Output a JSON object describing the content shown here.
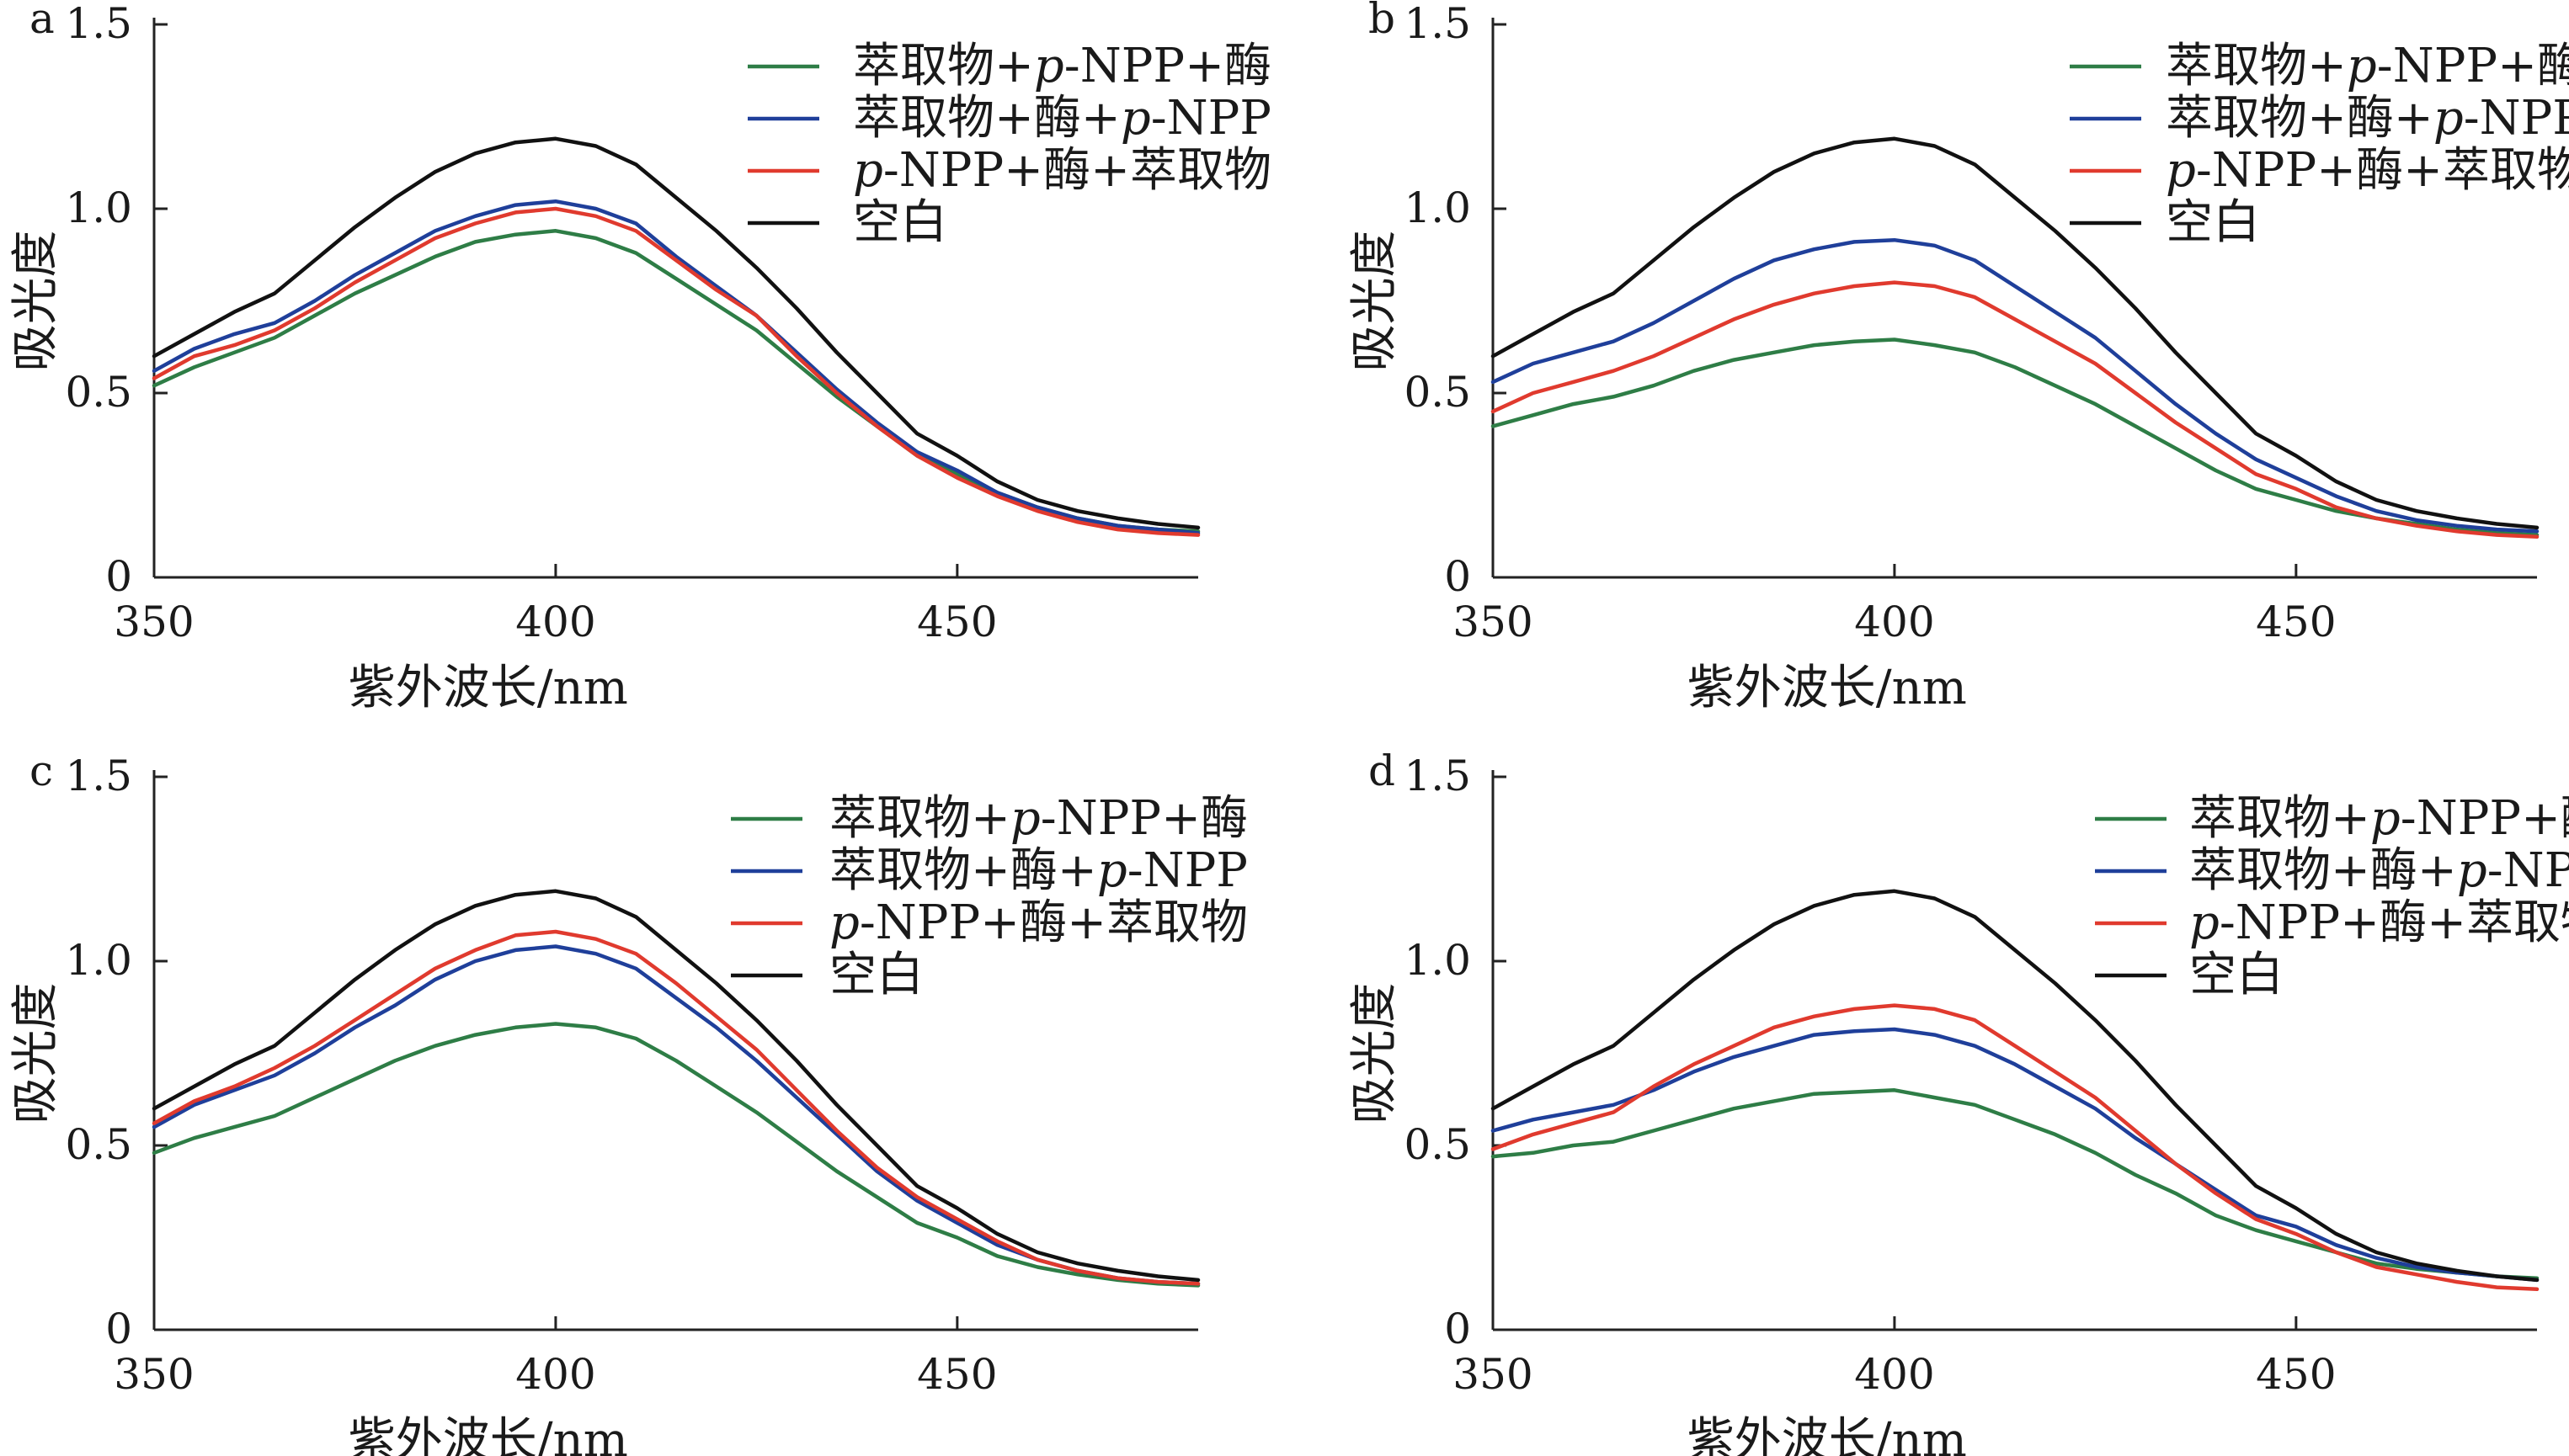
{
  "colors": {
    "green": "#2e7d46",
    "blue": "#1f3f9a",
    "red": "#e03a2e",
    "black": "#111111"
  },
  "chart_data": [
    {
      "type": "line",
      "panel": "a",
      "xlabel": "紫外波长/nm",
      "ylabel": "吸光度",
      "xlim": [
        350,
        480
      ],
      "ylim": [
        0,
        1.5
      ],
      "xticks": [
        "350",
        "400",
        "450"
      ],
      "yticks": [
        "0",
        "0.5",
        "1.0",
        "1.5"
      ],
      "legend_position": "top-right",
      "x": [
        350,
        355,
        360,
        365,
        370,
        375,
        380,
        385,
        390,
        395,
        400,
        405,
        410,
        415,
        420,
        425,
        430,
        435,
        440,
        445,
        450,
        455,
        460,
        465,
        470,
        475,
        480
      ],
      "series": [
        {
          "name": "萃取物+p-NPP+酶",
          "color": "green",
          "values": [
            0.52,
            0.57,
            0.61,
            0.65,
            0.71,
            0.77,
            0.82,
            0.87,
            0.91,
            0.93,
            0.94,
            0.92,
            0.88,
            0.81,
            0.74,
            0.67,
            0.58,
            0.49,
            0.41,
            0.33,
            0.28,
            0.23,
            0.19,
            0.16,
            0.14,
            0.13,
            0.125
          ]
        },
        {
          "name": "萃取物+酶+p-NPP",
          "color": "blue",
          "values": [
            0.56,
            0.62,
            0.66,
            0.69,
            0.75,
            0.82,
            0.88,
            0.94,
            0.98,
            1.01,
            1.02,
            1.0,
            0.96,
            0.87,
            0.79,
            0.71,
            0.61,
            0.51,
            0.42,
            0.34,
            0.29,
            0.23,
            0.19,
            0.16,
            0.14,
            0.13,
            0.12
          ]
        },
        {
          "name": "p-NPP+酶+萃取物",
          "color": "red",
          "values": [
            0.54,
            0.6,
            0.63,
            0.67,
            0.73,
            0.8,
            0.86,
            0.92,
            0.96,
            0.99,
            1.0,
            0.98,
            0.94,
            0.86,
            0.78,
            0.71,
            0.6,
            0.5,
            0.41,
            0.33,
            0.27,
            0.22,
            0.18,
            0.15,
            0.13,
            0.12,
            0.115
          ]
        },
        {
          "name": "空白",
          "color": "black",
          "values": [
            0.6,
            0.66,
            0.72,
            0.77,
            0.86,
            0.95,
            1.03,
            1.1,
            1.15,
            1.18,
            1.19,
            1.17,
            1.12,
            1.03,
            0.94,
            0.84,
            0.73,
            0.61,
            0.5,
            0.39,
            0.33,
            0.26,
            0.21,
            0.18,
            0.16,
            0.145,
            0.135
          ]
        }
      ]
    },
    {
      "type": "line",
      "panel": "b",
      "xlabel": "紫外波长/nm",
      "ylabel": "吸光度",
      "xlim": [
        350,
        480
      ],
      "ylim": [
        0,
        1.5
      ],
      "xticks": [
        "350",
        "400",
        "450"
      ],
      "yticks": [
        "0",
        "0.5",
        "1.0",
        "1.5"
      ],
      "legend_position": "top-right",
      "x": [
        350,
        355,
        360,
        365,
        370,
        375,
        380,
        385,
        390,
        395,
        400,
        405,
        410,
        415,
        420,
        425,
        430,
        435,
        440,
        445,
        450,
        455,
        460,
        465,
        470,
        475,
        480
      ],
      "series": [
        {
          "name": "萃取物+p-NPP+酶",
          "color": "green",
          "values": [
            0.41,
            0.44,
            0.47,
            0.49,
            0.52,
            0.56,
            0.59,
            0.61,
            0.63,
            0.64,
            0.645,
            0.63,
            0.61,
            0.57,
            0.52,
            0.47,
            0.41,
            0.35,
            0.29,
            0.24,
            0.21,
            0.18,
            0.16,
            0.145,
            0.13,
            0.12,
            0.115
          ]
        },
        {
          "name": "萃取物+酶+p-NPP",
          "color": "blue",
          "values": [
            0.53,
            0.58,
            0.61,
            0.64,
            0.69,
            0.75,
            0.81,
            0.86,
            0.89,
            0.91,
            0.915,
            0.9,
            0.86,
            0.79,
            0.72,
            0.65,
            0.56,
            0.47,
            0.39,
            0.32,
            0.27,
            0.22,
            0.18,
            0.155,
            0.14,
            0.13,
            0.125
          ]
        },
        {
          "name": "p-NPP+酶+萃取物",
          "color": "red",
          "values": [
            0.45,
            0.5,
            0.53,
            0.56,
            0.6,
            0.65,
            0.7,
            0.74,
            0.77,
            0.79,
            0.8,
            0.79,
            0.76,
            0.7,
            0.64,
            0.58,
            0.5,
            0.42,
            0.35,
            0.28,
            0.24,
            0.19,
            0.16,
            0.14,
            0.125,
            0.115,
            0.11
          ]
        },
        {
          "name": "空白",
          "color": "black",
          "values": [
            0.6,
            0.66,
            0.72,
            0.77,
            0.86,
            0.95,
            1.03,
            1.1,
            1.15,
            1.18,
            1.19,
            1.17,
            1.12,
            1.03,
            0.94,
            0.84,
            0.73,
            0.61,
            0.5,
            0.39,
            0.33,
            0.26,
            0.21,
            0.18,
            0.16,
            0.145,
            0.135
          ]
        }
      ]
    },
    {
      "type": "line",
      "panel": "c",
      "xlabel": "紫外波长/nm",
      "ylabel": "吸光度",
      "xlim": [
        350,
        480
      ],
      "ylim": [
        0,
        1.5
      ],
      "xticks": [
        "350",
        "400",
        "450"
      ],
      "yticks": [
        "0",
        "0.5",
        "1.0",
        "1.5"
      ],
      "legend_position": "top-right",
      "x": [
        350,
        355,
        360,
        365,
        370,
        375,
        380,
        385,
        390,
        395,
        400,
        405,
        410,
        415,
        420,
        425,
        430,
        435,
        440,
        445,
        450,
        455,
        460,
        465,
        470,
        475,
        480
      ],
      "series": [
        {
          "name": "萃取物+p-NPP+酶",
          "color": "green",
          "values": [
            0.48,
            0.52,
            0.55,
            0.58,
            0.63,
            0.68,
            0.73,
            0.77,
            0.8,
            0.82,
            0.83,
            0.82,
            0.79,
            0.73,
            0.66,
            0.59,
            0.51,
            0.43,
            0.36,
            0.29,
            0.25,
            0.2,
            0.17,
            0.15,
            0.135,
            0.125,
            0.12
          ]
        },
        {
          "name": "萃取物+酶+p-NPP",
          "color": "blue",
          "values": [
            0.55,
            0.61,
            0.65,
            0.69,
            0.75,
            0.82,
            0.88,
            0.95,
            1.0,
            1.03,
            1.04,
            1.02,
            0.98,
            0.9,
            0.82,
            0.73,
            0.63,
            0.53,
            0.43,
            0.35,
            0.29,
            0.23,
            0.19,
            0.16,
            0.14,
            0.13,
            0.125
          ]
        },
        {
          "name": "p-NPP+酶+萃取物",
          "color": "red",
          "values": [
            0.56,
            0.62,
            0.66,
            0.71,
            0.77,
            0.84,
            0.91,
            0.98,
            1.03,
            1.07,
            1.08,
            1.06,
            1.02,
            0.94,
            0.85,
            0.76,
            0.65,
            0.54,
            0.44,
            0.36,
            0.3,
            0.24,
            0.19,
            0.16,
            0.14,
            0.13,
            0.125
          ]
        },
        {
          "name": "空白",
          "color": "black",
          "values": [
            0.6,
            0.66,
            0.72,
            0.77,
            0.86,
            0.95,
            1.03,
            1.1,
            1.15,
            1.18,
            1.19,
            1.17,
            1.12,
            1.03,
            0.94,
            0.84,
            0.73,
            0.61,
            0.5,
            0.39,
            0.33,
            0.26,
            0.21,
            0.18,
            0.16,
            0.145,
            0.135
          ]
        }
      ]
    },
    {
      "type": "line",
      "panel": "d",
      "xlabel": "紫外波长/nm",
      "ylabel": "吸光度",
      "xlim": [
        350,
        480
      ],
      "ylim": [
        0,
        1.5
      ],
      "xticks": [
        "350",
        "400",
        "450"
      ],
      "yticks": [
        "0",
        "0.5",
        "1.0",
        "1.5"
      ],
      "legend_position": "top-right",
      "x": [
        350,
        355,
        360,
        365,
        370,
        375,
        380,
        385,
        390,
        395,
        400,
        405,
        410,
        415,
        420,
        425,
        430,
        435,
        440,
        445,
        450,
        455,
        460,
        465,
        470,
        475,
        480
      ],
      "series": [
        {
          "name": "萃取物+p-NPP+酶",
          "color": "green",
          "values": [
            0.47,
            0.48,
            0.5,
            0.51,
            0.54,
            0.57,
            0.6,
            0.62,
            0.64,
            0.645,
            0.65,
            0.63,
            0.61,
            0.57,
            0.53,
            0.48,
            0.42,
            0.37,
            0.31,
            0.27,
            0.24,
            0.21,
            0.18,
            0.165,
            0.155,
            0.145,
            0.14
          ]
        },
        {
          "name": "萃取物+酶+p-NPP",
          "color": "blue",
          "values": [
            0.54,
            0.57,
            0.59,
            0.61,
            0.65,
            0.7,
            0.74,
            0.77,
            0.8,
            0.81,
            0.815,
            0.8,
            0.77,
            0.72,
            0.66,
            0.6,
            0.52,
            0.45,
            0.38,
            0.31,
            0.28,
            0.23,
            0.195,
            0.17,
            0.155,
            0.145,
            0.135
          ]
        },
        {
          "name": "p-NPP+酶+萃取物",
          "color": "red",
          "values": [
            0.49,
            0.53,
            0.56,
            0.59,
            0.66,
            0.72,
            0.77,
            0.82,
            0.85,
            0.87,
            0.88,
            0.87,
            0.84,
            0.77,
            0.7,
            0.63,
            0.54,
            0.45,
            0.37,
            0.3,
            0.26,
            0.21,
            0.17,
            0.15,
            0.13,
            0.115,
            0.11
          ]
        },
        {
          "name": "空白",
          "color": "black",
          "values": [
            0.6,
            0.66,
            0.72,
            0.77,
            0.86,
            0.95,
            1.03,
            1.1,
            1.15,
            1.18,
            1.19,
            1.17,
            1.12,
            1.03,
            0.94,
            0.84,
            0.73,
            0.61,
            0.5,
            0.39,
            0.33,
            0.26,
            0.21,
            0.18,
            0.16,
            0.145,
            0.135
          ]
        }
      ]
    }
  ]
}
